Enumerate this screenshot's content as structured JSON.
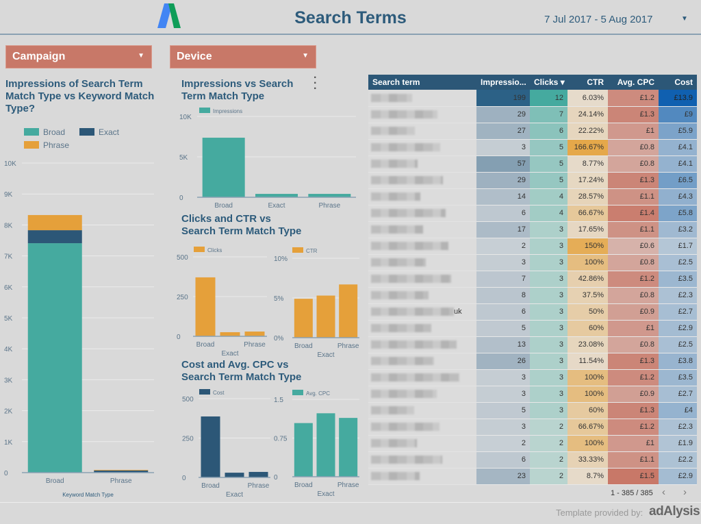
{
  "header": {
    "title": "Search Terms",
    "date_range": "7 Jul 2017 - 5 Aug 2017",
    "logo_icon": "google-adwords-logo"
  },
  "filters": [
    {
      "label": "Campaign"
    },
    {
      "label": "Device"
    }
  ],
  "colors": {
    "teal": "#45aa9f",
    "navy": "#2c5777",
    "orange": "#e5a03a",
    "filter": "#c87868",
    "title": "#2d5b7b"
  },
  "titles": {
    "left": "Impressions of Search Term Match Type vs Keyword Match Type?",
    "impressions": "Impressions vs Search Term Match Type",
    "clicks": "Clicks and CTR vs Search Term Match Type",
    "cost": "Cost and Avg. CPC vs Search Term Match Type"
  },
  "chart_data": [
    {
      "id": "left",
      "type": "bar",
      "stacked": true,
      "categories": [
        "Broad",
        "Phrase"
      ],
      "xlabel": "Keyword Match Type",
      "ylim": [
        0,
        10000
      ],
      "yticks": [
        "0",
        "1K",
        "2K",
        "3K",
        "4K",
        "5K",
        "6K",
        "7K",
        "8K",
        "9K",
        "10K"
      ],
      "legend": "top",
      "series": [
        {
          "name": "Broad",
          "color": "#45aa9f",
          "values": [
            7410,
            0
          ]
        },
        {
          "name": "Exact",
          "color": "#2c5777",
          "values": [
            420,
            70
          ]
        },
        {
          "name": "Phrase",
          "color": "#e5a03a",
          "values": [
            490,
            20
          ]
        }
      ]
    },
    {
      "id": "impressions",
      "type": "bar",
      "categories": [
        "Broad",
        "Exact",
        "Phrase"
      ],
      "ylim": [
        0,
        10000
      ],
      "yticks": [
        "0",
        "5K",
        "10K"
      ],
      "series": [
        {
          "name": "Impressions",
          "color": "#45aa9f",
          "values": [
            7370,
            420,
            420
          ]
        }
      ]
    },
    {
      "id": "clicks",
      "type": "bar",
      "categories": [
        "Broad",
        "Exact",
        "Phrase"
      ],
      "ylim": [
        0,
        500
      ],
      "yticks": [
        "0",
        "250",
        "500"
      ],
      "series": [
        {
          "name": "Clicks",
          "color": "#e5a03a",
          "values": [
            371,
            26,
            30
          ]
        }
      ]
    },
    {
      "id": "ctr",
      "type": "bar",
      "categories": [
        "Broad",
        "Exact",
        "Phrase"
      ],
      "ylim": [
        0,
        10
      ],
      "yticks": [
        "0%",
        "5%",
        "10%"
      ],
      "series": [
        {
          "name": "CTR",
          "color": "#e5a03a",
          "values": [
            4.9,
            5.3,
            6.7
          ]
        }
      ]
    },
    {
      "id": "cost",
      "type": "bar",
      "categories": [
        "Broad",
        "Exact",
        "Phrase"
      ],
      "ylim": [
        0,
        500
      ],
      "yticks": [
        "0",
        "250",
        "500"
      ],
      "series": [
        {
          "name": "Cost",
          "color": "#2c5777",
          "values": [
            387,
            30,
            35
          ]
        }
      ]
    },
    {
      "id": "cpc",
      "type": "bar",
      "categories": [
        "Broad",
        "Exact",
        "Phrase"
      ],
      "ylim": [
        0,
        1.5
      ],
      "yticks": [
        "0",
        "0.75",
        "1.5"
      ],
      "series": [
        {
          "name": "Avg. CPC",
          "color": "#45aa9f",
          "values": [
            1.04,
            1.23,
            1.14
          ]
        }
      ]
    }
  ],
  "table": {
    "columns": [
      "Search term",
      "Impressio...",
      "Clicks",
      "CTR",
      "Avg. CPC",
      "Cost"
    ],
    "sort_indicator": "▾",
    "rows": [
      [
        "",
        199,
        12,
        "6.03%",
        "£1.2",
        "£13.9"
      ],
      [
        "",
        29,
        7,
        "24.14%",
        "£1.3",
        "£9"
      ],
      [
        "",
        27,
        6,
        "22.22%",
        "£1",
        "£5.9"
      ],
      [
        "",
        3,
        5,
        "166.67%",
        "£0.8",
        "£4.1"
      ],
      [
        "",
        57,
        5,
        "8.77%",
        "£0.8",
        "£4.1"
      ],
      [
        "",
        29,
        5,
        "17.24%",
        "£1.3",
        "£6.5"
      ],
      [
        "",
        14,
        4,
        "28.57%",
        "£1.1",
        "£4.3"
      ],
      [
        "",
        6,
        4,
        "66.67%",
        "£1.4",
        "£5.8"
      ],
      [
        "",
        17,
        3,
        "17.65%",
        "£1.1",
        "£3.2"
      ],
      [
        "",
        2,
        3,
        "150%",
        "£0.6",
        "£1.7"
      ],
      [
        "",
        3,
        3,
        "100%",
        "£0.8",
        "£2.5"
      ],
      [
        "",
        7,
        3,
        "42.86%",
        "£1.2",
        "£3.5"
      ],
      [
        "",
        8,
        3,
        "37.5%",
        "£0.8",
        "£2.3"
      ],
      [
        "uk",
        6,
        3,
        "50%",
        "£0.9",
        "£2.7"
      ],
      [
        "",
        5,
        3,
        "60%",
        "£1",
        "£2.9"
      ],
      [
        "",
        13,
        3,
        "23.08%",
        "£0.8",
        "£2.5"
      ],
      [
        "",
        26,
        3,
        "11.54%",
        "£1.3",
        "£3.8"
      ],
      [
        "",
        3,
        3,
        "100%",
        "£1.2",
        "£3.5"
      ],
      [
        "",
        3,
        3,
        "100%",
        "£0.9",
        "£2.7"
      ],
      [
        "",
        5,
        3,
        "60%",
        "£1.3",
        "£4"
      ],
      [
        "",
        3,
        2,
        "66.67%",
        "£1.2",
        "£2.3"
      ],
      [
        "",
        2,
        2,
        "100%",
        "£1",
        "£1.9"
      ],
      [
        "",
        6,
        2,
        "33.33%",
        "£1.1",
        "£2.2"
      ],
      [
        "",
        23,
        2,
        "8.7%",
        "£1.5",
        "£2.9"
      ]
    ],
    "pagination": "1 - 385 / 385"
  },
  "footer": {
    "credit": "Template provided by:",
    "brand": "adAlysis"
  }
}
